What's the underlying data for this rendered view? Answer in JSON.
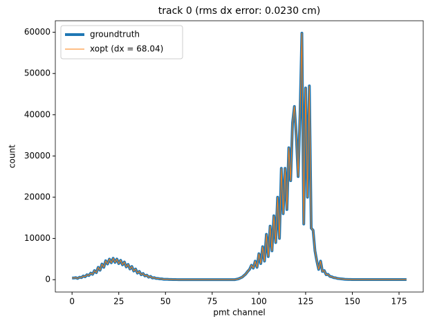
{
  "chart_data": {
    "type": "line",
    "title": "track 0 (rms dx error: 0.0230 cm)",
    "xlabel": "pmt channel",
    "ylabel": "count",
    "x": [
      0,
      1,
      2,
      3,
      4,
      5,
      6,
      7,
      8,
      9,
      10,
      11,
      12,
      13,
      14,
      15,
      16,
      17,
      18,
      19,
      20,
      21,
      22,
      23,
      24,
      25,
      26,
      27,
      28,
      29,
      30,
      31,
      32,
      33,
      34,
      35,
      36,
      37,
      38,
      39,
      40,
      41,
      42,
      43,
      44,
      45,
      46,
      47,
      48,
      49,
      50,
      51,
      52,
      53,
      54,
      55,
      56,
      57,
      58,
      59,
      60,
      61,
      62,
      63,
      64,
      65,
      66,
      67,
      68,
      69,
      70,
      71,
      72,
      73,
      74,
      75,
      76,
      77,
      78,
      79,
      80,
      81,
      82,
      83,
      84,
      85,
      86,
      87,
      88,
      89,
      90,
      91,
      92,
      93,
      94,
      95,
      96,
      97,
      98,
      99,
      100,
      101,
      102,
      103,
      104,
      105,
      106,
      107,
      108,
      109,
      110,
      111,
      112,
      113,
      114,
      115,
      116,
      117,
      118,
      119,
      120,
      121,
      122,
      123,
      124,
      125,
      126,
      127,
      128,
      129,
      130,
      131,
      132,
      133,
      134,
      135,
      136,
      137,
      138,
      139,
      140,
      141,
      142,
      143,
      144,
      145,
      146,
      147,
      148,
      149,
      150,
      151,
      152,
      153,
      154,
      155,
      156,
      157,
      158,
      159,
      160,
      161,
      162,
      163,
      164,
      165,
      166,
      167,
      168,
      169,
      170,
      171,
      172,
      173,
      174,
      175,
      176,
      177,
      178,
      179
    ],
    "series": [
      {
        "name": "groundtruth",
        "color": "#1f77b4",
        "width": 4,
        "values": [
          400,
          400,
          500,
          300,
          600,
          500,
          900,
          700,
          1200,
          1000,
          1600,
          1300,
          2200,
          1700,
          3000,
          2300,
          3800,
          3000,
          4600,
          3800,
          5000,
          4100,
          5200,
          4200,
          5000,
          3900,
          4700,
          3600,
          4300,
          3100,
          3700,
          2600,
          3200,
          2100,
          2600,
          1600,
          2000,
          1200,
          1500,
          900,
          1100,
          600,
          800,
          400,
          500,
          300,
          300,
          200,
          200,
          100,
          100,
          100,
          50,
          50,
          30,
          30,
          20,
          20,
          10,
          10,
          0,
          0,
          0,
          0,
          0,
          0,
          0,
          0,
          0,
          0,
          0,
          0,
          0,
          0,
          0,
          0,
          0,
          0,
          0,
          0,
          0,
          0,
          0,
          0,
          0,
          0,
          0,
          0,
          100,
          200,
          400,
          600,
          1000,
          1400,
          2000,
          2500,
          3500,
          2800,
          4500,
          3000,
          6300,
          3900,
          8000,
          4500,
          11000,
          5600,
          13000,
          7000,
          15500,
          9000,
          20000,
          10000,
          27000,
          16000,
          27000,
          17000,
          32000,
          24000,
          38000,
          42000,
          35000,
          25000,
          40000,
          59800,
          13500,
          46500,
          20000,
          47000,
          12500,
          12000,
          7000,
          4500,
          2500,
          4500,
          2000,
          2200,
          1200,
          1300,
          800,
          700,
          500,
          450,
          300,
          250,
          200,
          150,
          100,
          80,
          60,
          50,
          30,
          30,
          30,
          30,
          30,
          30,
          30,
          30,
          30,
          30,
          30,
          30,
          30,
          30,
          30,
          30,
          30,
          30,
          30,
          30,
          30,
          30,
          30,
          30,
          30,
          30,
          30,
          30,
          30,
          30
        ]
      },
      {
        "name": "xopt (dx = 68.04)",
        "color": "#ff7f0e",
        "width": 1,
        "values": [
          400,
          400,
          500,
          300,
          600,
          500,
          900,
          700,
          1200,
          1000,
          1600,
          1300,
          2200,
          1700,
          3000,
          2300,
          3800,
          3000,
          4600,
          3800,
          5000,
          4100,
          5200,
          4200,
          5000,
          3900,
          4700,
          3600,
          4300,
          3100,
          3700,
          2600,
          3200,
          2100,
          2600,
          1600,
          2000,
          1200,
          1500,
          900,
          1100,
          600,
          800,
          400,
          500,
          300,
          300,
          200,
          200,
          100,
          100,
          100,
          50,
          50,
          30,
          30,
          20,
          20,
          10,
          10,
          0,
          0,
          0,
          0,
          0,
          0,
          0,
          0,
          0,
          0,
          0,
          0,
          0,
          0,
          0,
          0,
          0,
          0,
          0,
          0,
          0,
          0,
          0,
          0,
          0,
          0,
          0,
          0,
          100,
          200,
          400,
          600,
          1000,
          1400,
          2000,
          2500,
          3500,
          2800,
          4500,
          3000,
          6300,
          3900,
          8000,
          4500,
          11000,
          5600,
          13000,
          7000,
          15500,
          9000,
          20000,
          10000,
          27000,
          16000,
          27000,
          17000,
          32000,
          24000,
          38000,
          42000,
          35000,
          25000,
          40000,
          59800,
          13500,
          46500,
          20000,
          47000,
          12500,
          12000,
          7000,
          4500,
          2500,
          4500,
          2000,
          2200,
          1200,
          1300,
          800,
          700,
          500,
          450,
          300,
          250,
          200,
          150,
          100,
          80,
          60,
          50,
          30,
          30,
          30,
          30,
          30,
          30,
          30,
          30,
          30,
          30,
          30,
          30,
          30,
          30,
          30,
          30,
          30,
          30,
          30,
          30,
          30,
          30,
          30,
          30,
          30,
          30,
          30,
          30,
          30,
          30
        ]
      }
    ],
    "xlim": [
      -8.95,
      187.95
    ],
    "ylim": [
      -2990,
      62790
    ],
    "xticks": [
      0,
      25,
      50,
      75,
      100,
      125,
      150,
      175
    ],
    "yticks": [
      0,
      10000,
      20000,
      30000,
      40000,
      50000,
      60000
    ],
    "legend": "upper left"
  }
}
